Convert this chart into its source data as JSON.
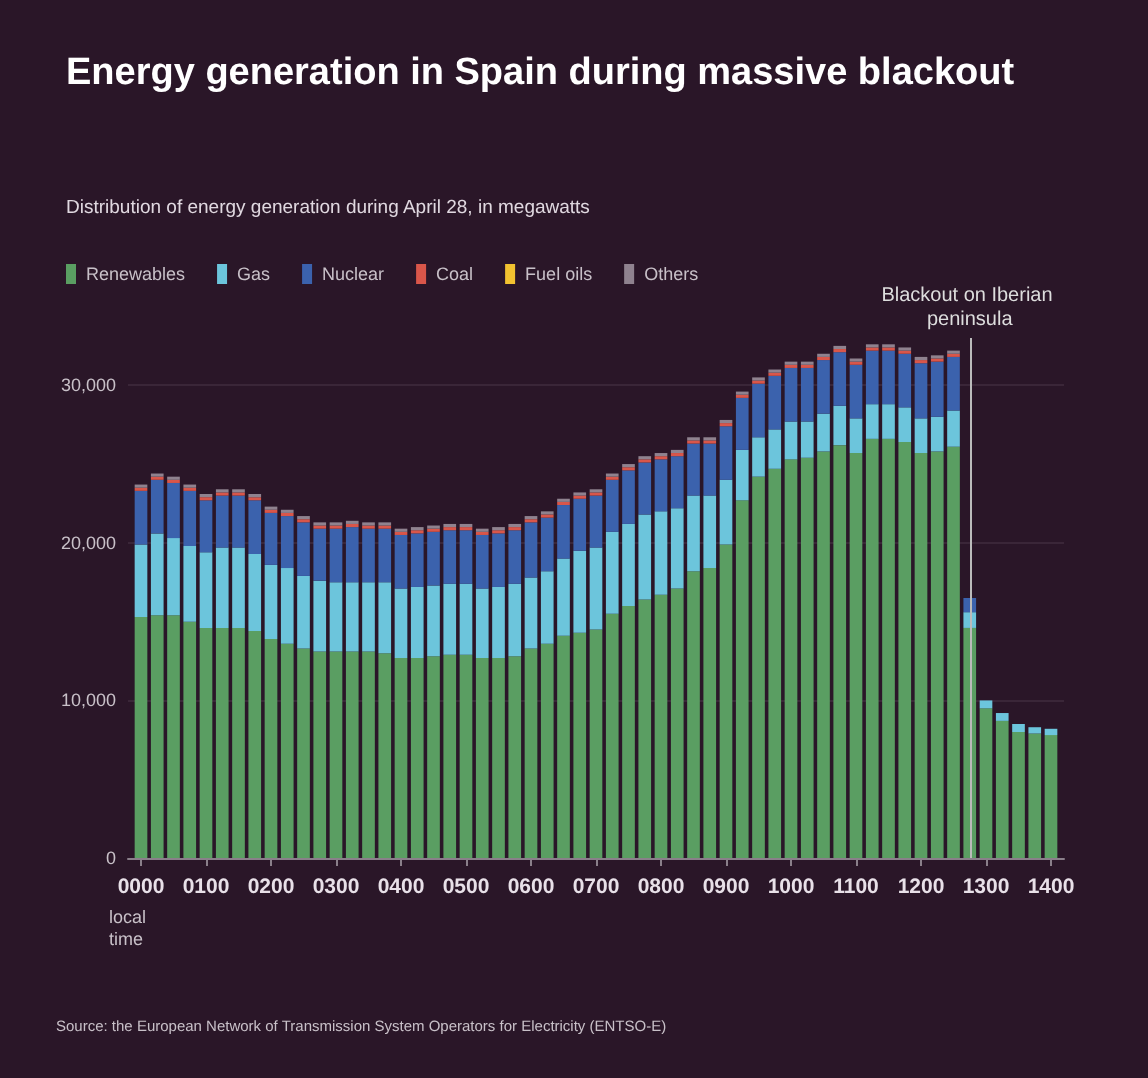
{
  "chart_data": {
    "type": "bar",
    "title": "Energy generation in Spain during massive blackout",
    "subtitle": "Distribution of energy generation during April 28, in megawatts",
    "xlabel": "local time",
    "annotations": [
      "Source: the European Network of Transmission System Operators for Electricity (ENTSO-E)"
    ],
    "x": [
      "--04-28T00:00",
      "--04-28T00:15",
      "--04-28T00:30",
      "--04-28T00:45",
      "--04-28T01:00",
      "--04-28T01:15",
      "--04-28T01:30",
      "--04-28T01:45",
      "--04-28T02:00",
      "--04-28T02:15",
      "--04-28T02:30",
      "--04-28T02:45",
      "--04-28T03:00",
      "--04-28T03:15",
      "--04-28T03:30",
      "--04-28T03:45",
      "--04-28T04:00",
      "--04-28T04:15",
      "--04-28T04:30",
      "--04-28T04:45",
      "--04-28T05:00",
      "--04-28T05:15",
      "--04-28T05:30",
      "--04-28T05:45",
      "--04-28T06:00",
      "--04-28T06:15",
      "--04-28T06:30",
      "--04-28T06:45",
      "--04-28T07:00",
      "--04-28T07:15",
      "--04-28T07:30",
      "--04-28T07:45",
      "--04-28T08:00",
      "--04-28T08:15",
      "--04-28T08:30",
      "--04-28T08:45",
      "--04-28T09:00",
      "--04-28T09:15",
      "--04-28T09:30",
      "--04-28T09:45",
      "--04-28T10:00",
      "--04-28T10:15",
      "--04-28T10:30",
      "--04-28T10:45",
      "--04-28T11:00",
      "--04-28T11:15",
      "--04-28T11:30",
      "--04-28T11:45",
      "--04-28T12:00",
      "--04-28T12:15",
      "--04-28T12:30",
      "--04-28T12:45",
      "--04-28T13:00",
      "--04-28T13:15",
      "--04-28T13:30",
      "--04-28T13:45",
      "--04-28T14:00"
    ],
    "stacked": true,
    "series": [
      {
        "name": "Renewables",
        "color": "#5a9e62",
        "values": [
          15300,
          15400,
          15400,
          15000,
          14600,
          14600,
          14600,
          14400,
          13900,
          13600,
          13300,
          13100,
          13100,
          13100,
          13100,
          13000,
          12700,
          12700,
          12800,
          12900,
          12900,
          12700,
          12700,
          12800,
          13300,
          13600,
          14100,
          14300,
          14500,
          15500,
          16000,
          16400,
          16700,
          17100,
          18200,
          18400,
          19900,
          22700,
          24200,
          24700,
          25300,
          25400,
          25800,
          26200,
          25700,
          26600,
          26600,
          26400,
          25700,
          25800,
          26100,
          14600,
          9500,
          8700,
          8000,
          7900,
          7800
        ]
      },
      {
        "name": "Gas",
        "color": "#6cc5dc",
        "values": [
          4600,
          5200,
          4900,
          4800,
          4800,
          5100,
          5100,
          4900,
          4700,
          4800,
          4600,
          4500,
          4400,
          4400,
          4400,
          4500,
          4400,
          4500,
          4500,
          4500,
          4500,
          4400,
          4500,
          4600,
          4500,
          4600,
          4900,
          5200,
          5200,
          5200,
          5200,
          5400,
          5300,
          5100,
          4800,
          4600,
          4100,
          3200,
          2500,
          2500,
          2400,
          2300,
          2400,
          2500,
          2200,
          2200,
          2200,
          2200,
          2200,
          2200,
          2300,
          1000,
          500,
          500,
          500,
          400,
          400
        ]
      },
      {
        "name": "Nuclear",
        "color": "#3b62ad",
        "values": [
          3400,
          3400,
          3500,
          3500,
          3300,
          3300,
          3300,
          3400,
          3300,
          3300,
          3400,
          3300,
          3400,
          3500,
          3400,
          3400,
          3400,
          3400,
          3400,
          3400,
          3400,
          3400,
          3400,
          3400,
          3500,
          3400,
          3400,
          3300,
          3300,
          3300,
          3400,
          3300,
          3300,
          3300,
          3300,
          3300,
          3400,
          3300,
          3400,
          3400,
          3400,
          3400,
          3400,
          3400,
          3400,
          3400,
          3400,
          3400,
          3500,
          3500,
          3400,
          900,
          0,
          0,
          0,
          0,
          0
        ]
      },
      {
        "name": "Coal",
        "color": "#d9564a",
        "values": [
          200,
          200,
          200,
          200,
          200,
          200,
          200,
          200,
          200,
          200,
          200,
          200,
          200,
          200,
          200,
          200,
          200,
          200,
          200,
          200,
          200,
          200,
          200,
          200,
          200,
          200,
          200,
          200,
          200,
          200,
          200,
          200,
          200,
          200,
          200,
          200,
          200,
          200,
          200,
          200,
          200,
          200,
          200,
          200,
          200,
          200,
          200,
          200,
          200,
          200,
          200,
          0,
          0,
          0,
          0,
          0,
          0
        ]
      },
      {
        "name": "Fuel oils",
        "color": "#f2c230",
        "values": [
          0,
          0,
          0,
          0,
          0,
          0,
          0,
          0,
          0,
          0,
          0,
          0,
          0,
          0,
          0,
          0,
          0,
          0,
          0,
          0,
          0,
          0,
          0,
          0,
          0,
          0,
          0,
          0,
          0,
          0,
          0,
          0,
          0,
          0,
          0,
          0,
          0,
          0,
          0,
          0,
          0,
          0,
          0,
          0,
          0,
          0,
          0,
          0,
          0,
          0,
          0,
          0,
          0,
          0,
          0,
          0,
          0
        ]
      },
      {
        "name": "Others",
        "color": "#8f828f",
        "values": [
          200,
          200,
          200,
          200,
          200,
          200,
          200,
          200,
          200,
          200,
          200,
          200,
          200,
          200,
          200,
          200,
          200,
          200,
          200,
          200,
          200,
          200,
          200,
          200,
          200,
          200,
          200,
          200,
          200,
          200,
          200,
          200,
          200,
          200,
          200,
          200,
          200,
          200,
          200,
          200,
          200,
          200,
          200,
          200,
          200,
          200,
          200,
          200,
          200,
          200,
          200,
          0,
          0,
          0,
          0,
          0,
          0
        ]
      }
    ],
    "xlim": [
      "--04-27T23:48",
      "--04-28T14:12"
    ],
    "xticks": [
      {
        "value": "--04-28T00:00",
        "label": "0000"
      },
      {
        "value": "--04-28T01:00",
        "label": "0100"
      },
      {
        "value": "--04-28T02:00",
        "label": "0200"
      },
      {
        "value": "--04-28T03:00",
        "label": "0300"
      },
      {
        "value": "--04-28T04:00",
        "label": "0400"
      },
      {
        "value": "--04-28T05:00",
        "label": "0500"
      },
      {
        "value": "--04-28T06:00",
        "label": "0600"
      },
      {
        "value": "--04-28T07:00",
        "label": "0700"
      },
      {
        "value": "--04-28T08:00",
        "label": "0800"
      },
      {
        "value": "--04-28T09:00",
        "label": "0900"
      },
      {
        "value": "--04-28T10:00",
        "label": "1000"
      },
      {
        "value": "--04-28T11:00",
        "label": "1100"
      },
      {
        "value": "--04-28T12:00",
        "label": "1200"
      },
      {
        "value": "--04-28T13:00",
        "label": "1300"
      },
      {
        "value": "--04-28T14:00",
        "label": "1400"
      }
    ],
    "ylim": [
      0,
      33000
    ],
    "yticks": [
      0,
      {
        "value": 10000,
        "label": "10,000"
      },
      {
        "value": 20000,
        "label": "20,000"
      },
      {
        "value": 30000,
        "label": "30,000"
      }
    ],
    "ref_lines": [
      {
        "axis": "x",
        "value": "--04-28T12:45",
        "label": "Blackout on Iberian peninsula",
        "color": "#bbbbbb"
      }
    ],
    "grid": "y",
    "legend": "top left"
  }
}
